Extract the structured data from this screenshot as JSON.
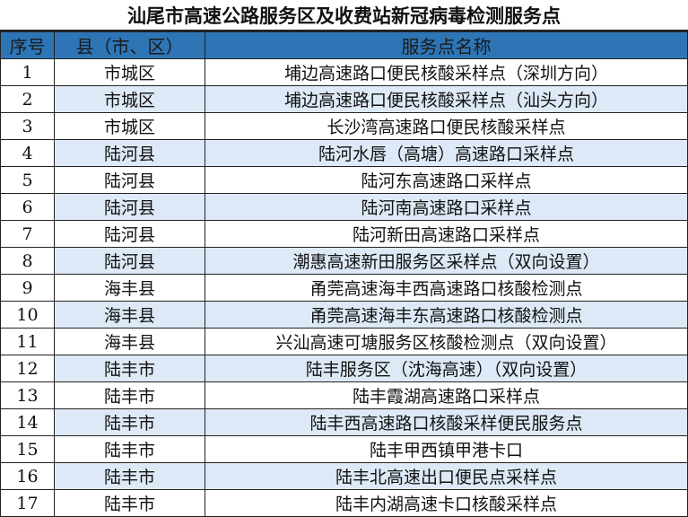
{
  "title": "汕尾市高速公路服务区及收费站新冠病毒检测服务点",
  "headers": [
    "序号",
    "县（市、区）",
    "服务点名称"
  ],
  "colors": {
    "header_bg": "#2e75b6",
    "stripe": "#dde9f6"
  },
  "rows": [
    [
      "1",
      "市城区",
      "埔边高速路口便民核酸采样点（深圳方向）"
    ],
    [
      "2",
      "市城区",
      "埔边高速路口便民核酸采样点（汕头方向）"
    ],
    [
      "3",
      "市城区",
      "长沙湾高速路口便民核酸采样点"
    ],
    [
      "4",
      "陆河县",
      "陆河水唇（高塘）高速路口采样点"
    ],
    [
      "5",
      "陆河县",
      "陆河东高速路口采样点"
    ],
    [
      "6",
      "陆河县",
      "陆河南高速路口采样点"
    ],
    [
      "7",
      "陆河县",
      "陆河新田高速路口采样点"
    ],
    [
      "8",
      "陆河县",
      "潮惠高速新田服务区采样点（双向设置）"
    ],
    [
      "9",
      "海丰县",
      "甬莞高速海丰西高速路口核酸检测点"
    ],
    [
      "10",
      "海丰县",
      "甬莞高速海丰东高速路口核酸检测点"
    ],
    [
      "11",
      "海丰县",
      "兴汕高速可塘服务区核酸检测点（双向设置）"
    ],
    [
      "12",
      "陆丰市",
      "陆丰服务区（沈海高速）（双向设置）"
    ],
    [
      "13",
      "陆丰市",
      "陆丰霞湖高速路口采样点"
    ],
    [
      "14",
      "陆丰市",
      "陆丰西高速路口核酸采样便民服务点"
    ],
    [
      "15",
      "陆丰市",
      "陆丰甲西镇甲港卡口"
    ],
    [
      "16",
      "陆丰市",
      "陆丰北高速出口便民点采样点"
    ],
    [
      "17",
      "陆丰市",
      "陆丰内湖高速卡口核酸采样点"
    ]
  ]
}
